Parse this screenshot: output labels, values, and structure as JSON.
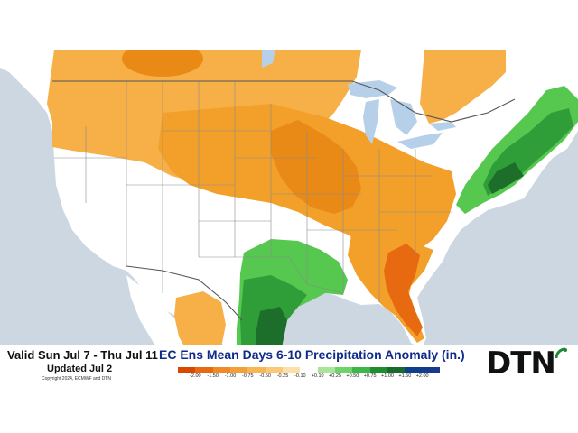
{
  "map": {
    "title": "EC Ens Mean Days 6-10 Precipitation Anomaly (in.)",
    "valid": "Valid Sun Jul 7 - Thu Jul 11",
    "updated": "Updated Jul 2",
    "copyright": "Copyright 2024, ECMWF and DTN",
    "brand": "DTN",
    "legend": {
      "labels": [
        "-2.00",
        "-1.50",
        "-1.00",
        "-0.75",
        "-0.50",
        "-0.25",
        "-0.10",
        "+0.10",
        "+0.25",
        "+0.50",
        "+0.75",
        "+1.00",
        "+1.50",
        "+2.00"
      ],
      "colors": [
        "#d94800",
        "#e86a10",
        "#f08a24",
        "#f4a03a",
        "#f7b654",
        "#f9c978",
        "#fbe0aa",
        "#ffffff",
        "#a8e49a",
        "#6cd46a",
        "#3cb648",
        "#1f8c2f",
        "#166b2a",
        "#0f3f8a",
        "#173a8a"
      ]
    },
    "colors": {
      "water": "#ccd7e2",
      "lake": "#b6d0ea",
      "dry_light": "#f7b048",
      "dry_mid": "#f2a02a",
      "dry_dark": "#e88a15",
      "dry_strong": "#e86a10",
      "wet_light": "#56c84f",
      "wet_mid": "#2f9e38",
      "wet_dark": "#1d6e2b",
      "border": "#8a8a8a"
    }
  }
}
